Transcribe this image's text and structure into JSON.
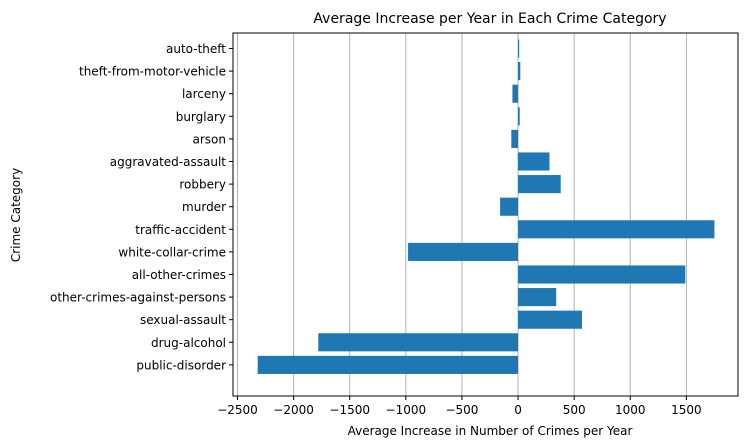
{
  "chart_data": {
    "type": "bar",
    "orientation": "horizontal",
    "title": "Average Increase per Year in Each Crime Category",
    "xlabel": "Average Increase in Number of Crimes per Year",
    "ylabel": "Crime Category",
    "categories": [
      "auto-theft",
      "theft-from-motor-vehicle",
      "larceny",
      "burglary",
      "arson",
      "aggravated-assault",
      "robbery",
      "murder",
      "traffic-accident",
      "white-collar-crime",
      "all-other-crimes",
      "other-crimes-against-persons",
      "sexual-assault",
      "drug-alcohol",
      "public-disorder"
    ],
    "values": [
      10,
      20,
      -50,
      15,
      -60,
      280,
      380,
      -160,
      1750,
      -980,
      1490,
      340,
      570,
      -1780,
      -2320
    ],
    "xlim": [
      -2540,
      1960
    ],
    "xticks": [
      -2500,
      -2000,
      -1500,
      -1000,
      -500,
      0,
      500,
      1000,
      1500
    ],
    "xtick_labels": [
      "−2500",
      "−2000",
      "−1500",
      "−1000",
      "−500",
      "0",
      "500",
      "1000",
      "1500"
    ],
    "grid": "vertical",
    "bar_color": "#1f77b4",
    "grid_color": "#b0b0b0"
  }
}
